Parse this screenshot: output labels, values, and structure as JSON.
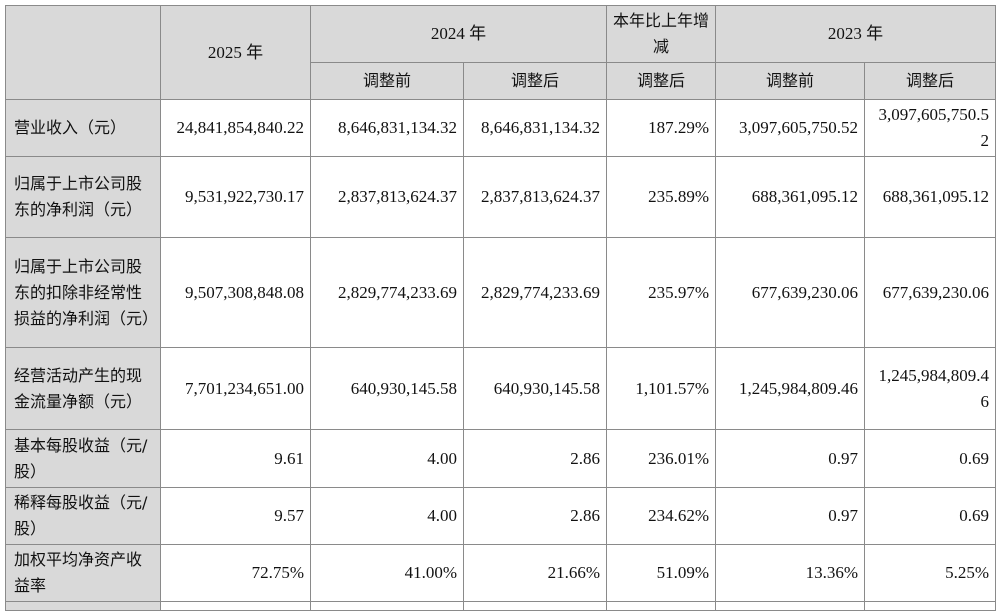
{
  "header": {
    "col_2025": "2025 年",
    "col_2024": "2024 年",
    "col_change": "本年比上年增减",
    "col_2023": "2023 年",
    "sub_before": "调整前",
    "sub_after": "调整后",
    "sub_change_after": "调整后"
  },
  "rows": [
    {
      "label": "营业收入（元）",
      "v2025": "24,841,854,840.22",
      "v2024_before": "8,646,831,134.32",
      "v2024_after": "8,646,831,134.32",
      "change": "187.29%",
      "v2023_before": "3,097,605,750.52",
      "v2023_after": "3,097,605,750.52"
    },
    {
      "label": "归属于上市公司股东的净利润（元）",
      "v2025": "9,531,922,730.17",
      "v2024_before": "2,837,813,624.37",
      "v2024_after": "2,837,813,624.37",
      "change": "235.89%",
      "v2023_before": "688,361,095.12",
      "v2023_after": "688,361,095.12"
    },
    {
      "label": "归属于上市公司股东的扣除非经常性损益的净利润（元）",
      "v2025": "9,507,308,848.08",
      "v2024_before": "2,829,774,233.69",
      "v2024_after": "2,829,774,233.69",
      "change": "235.97%",
      "v2023_before": "677,639,230.06",
      "v2023_after": "677,639,230.06"
    },
    {
      "label": "经营活动产生的现金流量净额（元）",
      "v2025": "7,701,234,651.00",
      "v2024_before": "640,930,145.58",
      "v2024_after": "640,930,145.58",
      "change": "1,101.57%",
      "v2023_before": "1,245,984,809.46",
      "v2023_after": "1,245,984,809.46"
    },
    {
      "label": "基本每股收益（元/股）",
      "v2025": "9.61",
      "v2024_before": "4.00",
      "v2024_after": "2.86",
      "change": "236.01%",
      "v2023_before": "0.97",
      "v2023_after": "0.69"
    },
    {
      "label": "稀释每股收益（元/股）",
      "v2025": "9.57",
      "v2024_before": "4.00",
      "v2024_after": "2.86",
      "change": "234.62%",
      "v2023_before": "0.97",
      "v2023_after": "0.69"
    },
    {
      "label": "加权平均净资产收益率",
      "v2025": "72.75%",
      "v2024_before": "41.00%",
      "v2024_after": "21.66%",
      "change": "51.09%",
      "v2023_before": "13.36%",
      "v2023_after": "5.25%"
    }
  ]
}
